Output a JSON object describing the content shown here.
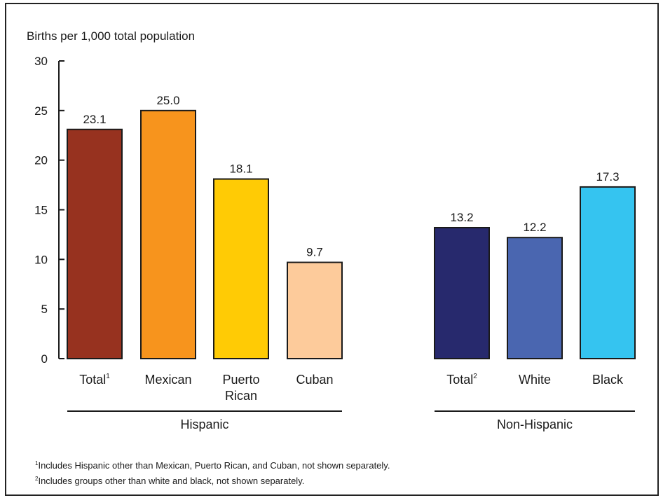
{
  "chart_data": {
    "type": "bar",
    "ylabel": "Births per 1,000 total population",
    "ylim": [
      0,
      30
    ],
    "yticks": [
      0,
      5,
      10,
      15,
      20,
      25,
      30
    ],
    "grid": false,
    "bars": [
      {
        "label": "Total",
        "sup": "1",
        "value": 23.1,
        "value_label": "23.1",
        "group": "Hispanic",
        "color": "#97321f"
      },
      {
        "label": "Mexican",
        "sup": "",
        "value": 25.0,
        "value_label": "25.0",
        "group": "Hispanic",
        "color": "#f7941d"
      },
      {
        "label": "Puerto Rican",
        "lines": [
          "Puerto",
          "Rican"
        ],
        "sup": "",
        "value": 18.1,
        "value_label": "18.1",
        "group": "Hispanic",
        "color": "#ffcb05"
      },
      {
        "label": "Cuban",
        "sup": "",
        "value": 9.7,
        "value_label": "9.7",
        "group": "Hispanic",
        "color": "#fdcb9b"
      },
      {
        "label": "Total",
        "sup": "2",
        "value": 13.2,
        "value_label": "13.2",
        "group": "Non-Hispanic",
        "color": "#27296d"
      },
      {
        "label": "White",
        "sup": "",
        "value": 12.2,
        "value_label": "12.2",
        "group": "Non-Hispanic",
        "color": "#4a66b0"
      },
      {
        "label": "Black",
        "sup": "",
        "value": 17.3,
        "value_label": "17.3",
        "group": "Non-Hispanic",
        "color": "#35c4f0"
      }
    ],
    "groups": [
      "Hispanic",
      "Non-Hispanic"
    ]
  },
  "footnotes": [
    {
      "marker": "1",
      "text": "Includes Hispanic other than Mexican, Puerto Rican, and Cuban, not shown separately."
    },
    {
      "marker": "2",
      "text": "Includes groups other than white and black, not shown separately."
    }
  ]
}
